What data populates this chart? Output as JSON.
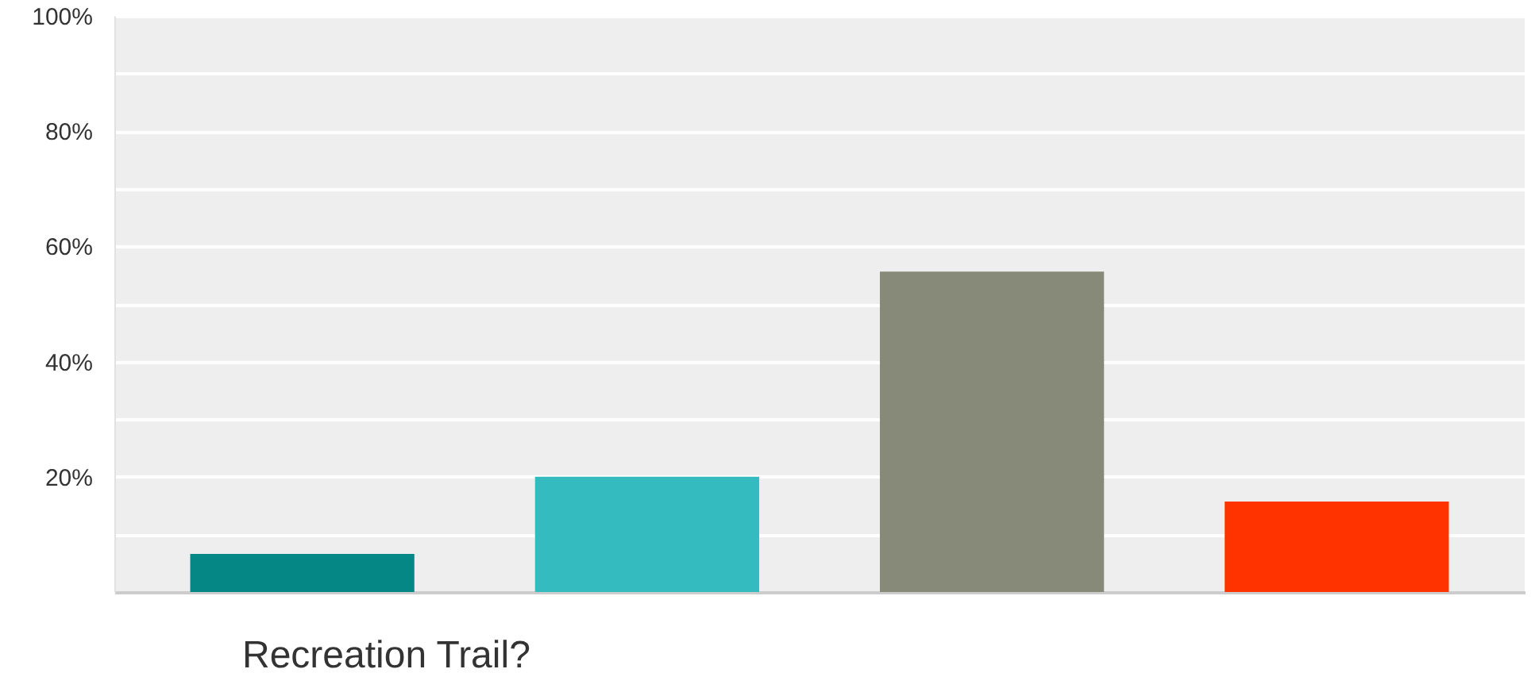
{
  "chart_data": {
    "type": "bar",
    "xlabel": "Recreation Trail?",
    "categories": [
      null,
      null,
      null,
      null
    ],
    "values": [
      6.6,
      20.0,
      55.6,
      15.7
    ],
    "colors": [
      "#058786",
      "#33bbbf",
      "#888a79",
      "#ff3300"
    ],
    "ylim": [
      0,
      100
    ],
    "yticks": [
      {
        "value": 10,
        "label": null
      },
      {
        "value": 20,
        "label": "20%"
      },
      {
        "value": 30,
        "label": null
      },
      {
        "value": 40,
        "label": "40%"
      },
      {
        "value": 50,
        "label": null
      },
      {
        "value": 60,
        "label": "60%"
      },
      {
        "value": 70,
        "label": null
      },
      {
        "value": 80,
        "label": "80%"
      },
      {
        "value": 90,
        "label": null
      },
      {
        "value": 100,
        "label": "100%"
      }
    ],
    "grid": "y",
    "tick_labels": "y"
  }
}
